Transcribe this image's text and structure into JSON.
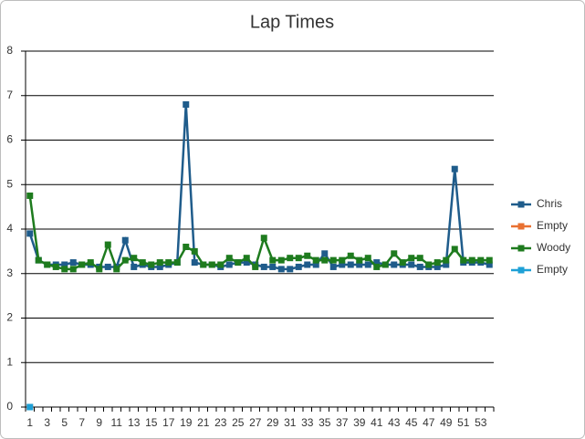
{
  "chart_data": {
    "type": "line",
    "title": "Lap Times",
    "categories": [
      1,
      null,
      3,
      null,
      5,
      null,
      7,
      null,
      9,
      null,
      11,
      null,
      13,
      null,
      15,
      null,
      17,
      null,
      19,
      null,
      21,
      null,
      23,
      null,
      25,
      null,
      27,
      null,
      29,
      null,
      31,
      null,
      33,
      null,
      35,
      null,
      37,
      null,
      39,
      null,
      41,
      null,
      43,
      null,
      45,
      null,
      47,
      null,
      49,
      null,
      51,
      null,
      53,
      null
    ],
    "series": [
      {
        "name": "Chris",
        "color": "#1f5c8b",
        "values": [
          3.9,
          3.3,
          3.2,
          3.2,
          3.2,
          3.25,
          3.2,
          3.2,
          3.15,
          3.15,
          3.15,
          3.75,
          3.15,
          3.2,
          3.15,
          3.15,
          3.2,
          3.25,
          6.8,
          3.25,
          3.2,
          3.2,
          3.15,
          3.2,
          3.25,
          3.25,
          3.2,
          3.15,
          3.15,
          3.1,
          3.1,
          3.15,
          3.2,
          3.2,
          3.45,
          3.15,
          3.2,
          3.2,
          3.2,
          3.2,
          3.25,
          3.2,
          3.2,
          3.2,
          3.2,
          3.15,
          3.15,
          3.15,
          3.2,
          5.35,
          3.25,
          3.25,
          3.25,
          3.2
        ]
      },
      {
        "name": "Empty",
        "color": "#e97132",
        "values": [
          0,
          null,
          null,
          null,
          null,
          null,
          null,
          null,
          null,
          null,
          null,
          null,
          null,
          null,
          null,
          null,
          null,
          null,
          null,
          null,
          null,
          null,
          null,
          null,
          null,
          null,
          null,
          null,
          null,
          null,
          null,
          null,
          null,
          null,
          null,
          null,
          null,
          null,
          null,
          null,
          null,
          null,
          null,
          null,
          null,
          null,
          null,
          null,
          null,
          null,
          null,
          null,
          null,
          null
        ]
      },
      {
        "name": "Woody",
        "color": "#1e7b1e",
        "values": [
          4.75,
          3.3,
          3.2,
          3.15,
          3.1,
          3.1,
          3.2,
          3.25,
          3.1,
          3.65,
          3.1,
          3.3,
          3.35,
          3.25,
          3.2,
          3.25,
          3.25,
          3.25,
          3.6,
          3.5,
          3.2,
          3.2,
          3.2,
          3.35,
          3.25,
          3.35,
          3.15,
          3.8,
          3.3,
          3.3,
          3.35,
          3.35,
          3.4,
          3.3,
          3.3,
          3.3,
          3.3,
          3.4,
          3.3,
          3.35,
          3.15,
          3.2,
          3.45,
          3.25,
          3.35,
          3.35,
          3.2,
          3.25,
          3.3,
          3.55,
          3.3,
          3.3,
          3.3,
          3.3
        ]
      },
      {
        "name": "Empty",
        "color": "#1ea0d6",
        "values": [
          0,
          null,
          null,
          null,
          null,
          null,
          null,
          null,
          null,
          null,
          null,
          null,
          null,
          null,
          null,
          null,
          null,
          null,
          null,
          null,
          null,
          null,
          null,
          null,
          null,
          null,
          null,
          null,
          null,
          null,
          null,
          null,
          null,
          null,
          null,
          null,
          null,
          null,
          null,
          null,
          null,
          null,
          null,
          null,
          null,
          null,
          null,
          null,
          null,
          null,
          null,
          null,
          null,
          null
        ]
      }
    ],
    "ylim": [
      0,
      8
    ],
    "yticks": [
      0,
      1,
      2,
      3,
      4,
      5,
      6,
      7,
      8
    ],
    "grid": true,
    "legend": "right"
  }
}
